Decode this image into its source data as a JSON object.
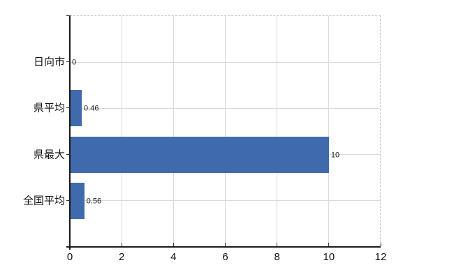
{
  "chart_data": {
    "type": "bar",
    "orientation": "horizontal",
    "title": "",
    "xlabel": "",
    "ylabel": "",
    "categories": [
      "日向市",
      "県平均",
      "県最大",
      "全国平均"
    ],
    "values": [
      0,
      0.46,
      10,
      0.56
    ],
    "value_labels": [
      "0",
      "0.46",
      "10",
      "0.56"
    ],
    "x_ticks": [
      0,
      2,
      4,
      6,
      8,
      10,
      12
    ],
    "x_tick_labels": [
      "0",
      "2",
      "4",
      "6",
      "8",
      "10",
      "12"
    ],
    "xlim": [
      0,
      12
    ],
    "grid": "on",
    "legend": "none",
    "bar_color": "#3f6bad",
    "gridline_color": "#d9d9d9",
    "axis_color": "#1a1a1a",
    "background_color": "#ffffff"
  }
}
